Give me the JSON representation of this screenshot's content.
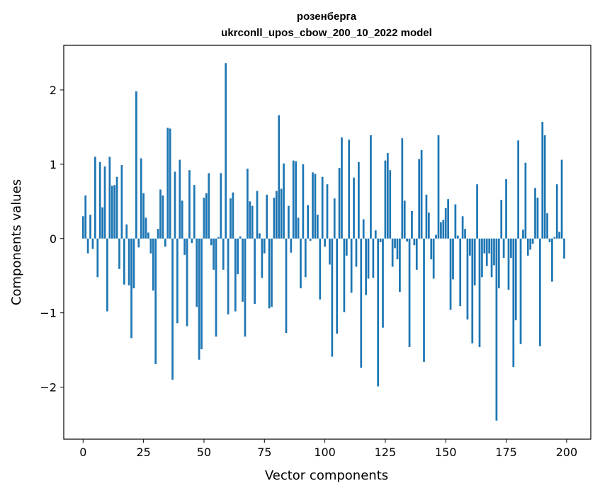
{
  "chart_data": {
    "type": "bar",
    "title": "розенберга",
    "subtitle": "ukrconll_upos_cbow_200_10_2022 model",
    "xlabel": "Vector components",
    "ylabel": "Components values",
    "xlim": [
      -8,
      210
    ],
    "ylim": [
      -2.7,
      2.6
    ],
    "xticks": [
      0,
      25,
      50,
      75,
      100,
      125,
      150,
      175,
      200
    ],
    "yticks": [
      -2,
      -1,
      0,
      1,
      2
    ],
    "ytick_labels": [
      "−2",
      "−1",
      "0",
      "1",
      "2"
    ],
    "bar_color": "#1f77b4",
    "grid": false,
    "legend": "none",
    "values": [
      0.3,
      0.58,
      -0.2,
      0.32,
      -0.14,
      1.1,
      -0.52,
      1.03,
      0.42,
      0.97,
      -0.98,
      1.1,
      0.71,
      0.72,
      0.83,
      -0.41,
      0.99,
      -0.62,
      0.19,
      -0.63,
      -1.34,
      -0.67,
      1.98,
      -0.12,
      1.08,
      0.61,
      0.28,
      0.08,
      -0.2,
      -0.7,
      -1.69,
      0.13,
      0.66,
      0.58,
      -0.11,
      1.49,
      1.48,
      -1.9,
      0.9,
      -1.14,
      1.06,
      0.51,
      -0.22,
      -1.18,
      0.92,
      -0.06,
      0.72,
      -0.92,
      -1.63,
      -1.49,
      0.55,
      0.61,
      0.88,
      -0.09,
      -0.42,
      -1.32,
      0.02,
      0.88,
      -0.42,
      2.36,
      -1.02,
      0.54,
      0.62,
      -0.98,
      -0.48,
      0.03,
      -0.85,
      -1.32,
      0.94,
      0.5,
      0.44,
      -0.88,
      0.64,
      0.07,
      -0.53,
      -0.2,
      0.59,
      -0.94,
      -0.92,
      0.55,
      0.64,
      1.66,
      0.67,
      1.01,
      -1.27,
      0.44,
      -0.19,
      1.05,
      1.04,
      0.28,
      -0.67,
      1.0,
      -0.52,
      0.45,
      -0.03,
      0.89,
      0.87,
      0.32,
      -0.82,
      0.83,
      -0.11,
      0.73,
      -0.35,
      -1.59,
      0.54,
      -1.28,
      0.95,
      1.36,
      -0.99,
      -0.23,
      1.33,
      -0.73,
      0.82,
      -0.38,
      1.03,
      -1.74,
      0.26,
      -0.76,
      -0.54,
      1.39,
      -0.53,
      0.11,
      -1.99,
      -0.05,
      -1.2,
      1.05,
      1.15,
      0.92,
      -0.38,
      -0.13,
      -0.28,
      -0.72,
      1.35,
      0.51,
      -0.04,
      -1.46,
      0.37,
      -0.09,
      -0.42,
      1.07,
      1.19,
      -1.66,
      0.59,
      0.35,
      -0.28,
      -0.54,
      0.05,
      1.39,
      0.22,
      0.25,
      0.41,
      0.53,
      -0.96,
      -0.55,
      0.46,
      0.04,
      -0.91,
      0.3,
      0.13,
      -1.09,
      -0.23,
      -1.41,
      -0.63,
      0.73,
      -1.46,
      -0.52,
      -0.2,
      -0.37,
      -0.2,
      -0.52,
      -0.36,
      -2.45,
      -0.67,
      0.52,
      -0.26,
      0.8,
      -0.69,
      -0.26,
      -1.73,
      -1.1,
      1.32,
      -1.42,
      0.12,
      1.02,
      -0.23,
      -0.15,
      -0.07,
      0.68,
      0.55,
      -1.45,
      1.57,
      1.39,
      0.34,
      -0.05,
      -0.58,
      0.02,
      0.73,
      0.09,
      1.06,
      -0.27
    ]
  }
}
